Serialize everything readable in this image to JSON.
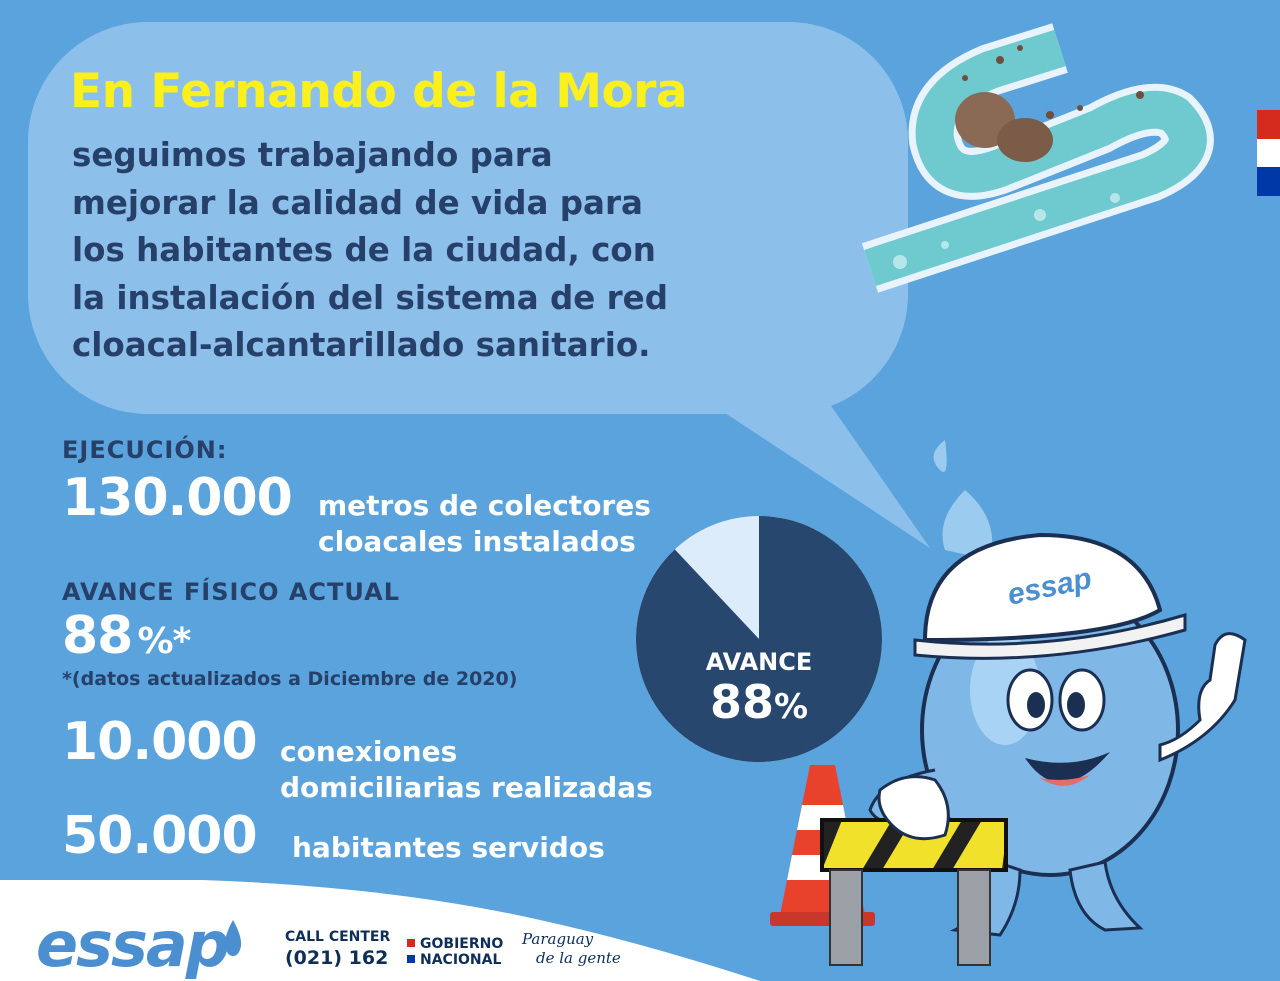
{
  "headline": "En Fernando de la Mora",
  "intro_lines": [
    "seguimos trabajando para",
    "mejorar la calidad de vida para",
    "los habitantes de la ciudad, con",
    "la instalación del sistema de red",
    "cloacal-alcantarillado sanitario."
  ],
  "execution": {
    "label": "EJECUCIÓN:",
    "number": "130.000",
    "desc_line1": "metros de colectores",
    "desc_line2": "cloacales instalados"
  },
  "progress": {
    "label": "AVANCE FÍSICO ACTUAL",
    "number": "88",
    "unit": "%*",
    "note": "*(datos actualizados a Diciembre de 2020)"
  },
  "connections": {
    "number": "10.000",
    "desc_line1": "conexiones",
    "desc_line2": "domiciliarias realizadas"
  },
  "inhabitants": {
    "number": "50.000",
    "desc": "habitantes servidos"
  },
  "pie": {
    "label": "AVANCE",
    "value": "88",
    "unit": "%",
    "fraction": 0.88
  },
  "footer": {
    "logo": "essap",
    "call_center_label": "CALL CENTER",
    "call_center_number": "(021) 162",
    "gov_line1": "GOBIERNO",
    "gov_line2": "NACIONAL",
    "slogan_line1": "Paraguay",
    "slogan_line2": "de la gente"
  },
  "helmet_text": "essap",
  "colors": {
    "background": "#5aa3dc",
    "bubble": "#8cc0ea",
    "headline": "#fbef1c",
    "navy": "#27406a",
    "pie_dark": "#27476f",
    "pie_light": "#dcecfb",
    "flag_red": "#d52b1e",
    "flag_blue": "#0038a8"
  }
}
